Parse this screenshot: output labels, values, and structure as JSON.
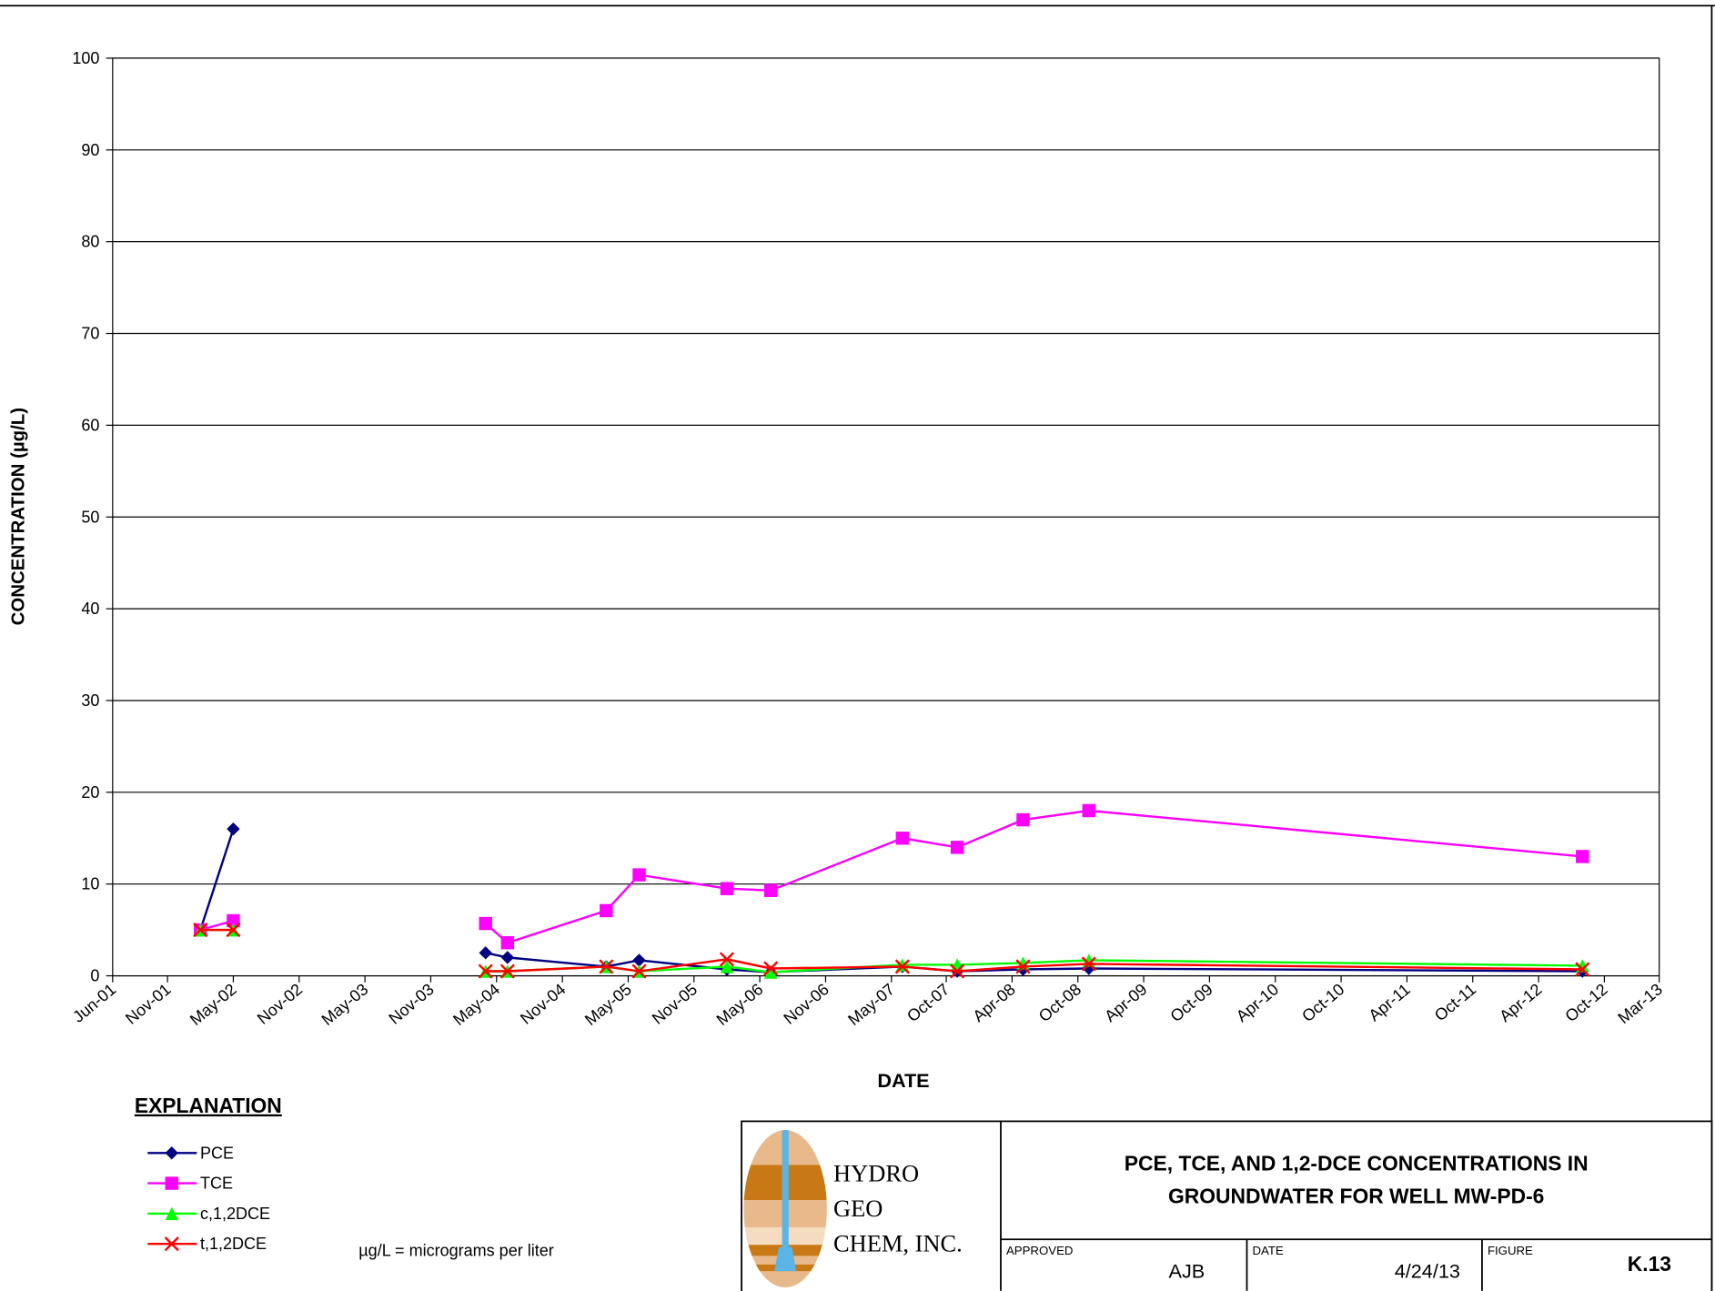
{
  "chart_data": {
    "type": "line",
    "x_label": "DATE",
    "y_label": "CONCENTRATION (µg/L)",
    "x": [
      "2002-02",
      "2002-05",
      "2003-06",
      "2004-04",
      "2004-06",
      "2005-03",
      "2005-06",
      "2006-02",
      "2006-06",
      "2007-06",
      "2007-11",
      "2008-05",
      "2008-11",
      "2012-08"
    ],
    "series": [
      {
        "name": "PCE",
        "color": "#000080",
        "marker": "diamond",
        "values": [
          5,
          16,
          null,
          2.5,
          2.0,
          1.0,
          1.7,
          0.7,
          0.4,
          1.0,
          0.5,
          0.7,
          0.8,
          0.5
        ]
      },
      {
        "name": "TCE",
        "color": "#ff00ff",
        "marker": "square",
        "values": [
          5,
          6,
          null,
          5.7,
          3.6,
          7.1,
          11,
          9.5,
          9.3,
          15,
          14,
          17,
          18,
          13
        ]
      },
      {
        "name": "c,1,2DCE",
        "color": "#00ff00",
        "marker": "triangle",
        "values": [
          5,
          5,
          null,
          0.5,
          0.5,
          1.0,
          0.5,
          1.0,
          0.4,
          1.2,
          1.2,
          1.4,
          1.7,
          1.1
        ]
      },
      {
        "name": "t,1,2DCE",
        "color": "#ff0000",
        "marker": "x",
        "values": [
          5,
          5,
          null,
          0.5,
          0.5,
          1.0,
          0.5,
          1.8,
          0.8,
          1.0,
          0.5,
          1.0,
          1.3,
          0.7
        ]
      }
    ],
    "xlim": [
      "2001-06",
      "2013-03"
    ],
    "xticks": [
      {
        "value": "2001-06",
        "label": "Jun-01"
      },
      {
        "value": "2001-11",
        "label": "Nov-01"
      },
      {
        "value": "2002-05",
        "label": "May-02"
      },
      {
        "value": "2002-11",
        "label": "Nov-02"
      },
      {
        "value": "2003-05",
        "label": "May-03"
      },
      {
        "value": "2003-11",
        "label": "Nov-03"
      },
      {
        "value": "2004-05",
        "label": "May-04"
      },
      {
        "value": "2004-11",
        "label": "Nov-04"
      },
      {
        "value": "2005-05",
        "label": "May-05"
      },
      {
        "value": "2005-11",
        "label": "Nov-05"
      },
      {
        "value": "2006-05",
        "label": "May-06"
      },
      {
        "value": "2006-11",
        "label": "Nov-06"
      },
      {
        "value": "2007-05",
        "label": "May-07"
      },
      {
        "value": "2007-10",
        "label": "Oct-07"
      },
      {
        "value": "2008-04",
        "label": "Apr-08"
      },
      {
        "value": "2008-10",
        "label": "Oct-08"
      },
      {
        "value": "2009-04",
        "label": "Apr-09"
      },
      {
        "value": "2009-10",
        "label": "Oct-09"
      },
      {
        "value": "2010-04",
        "label": "Apr-10"
      },
      {
        "value": "2010-10",
        "label": "Oct-10"
      },
      {
        "value": "2011-04",
        "label": "Apr-11"
      },
      {
        "value": "2011-10",
        "label": "Oct-11"
      },
      {
        "value": "2012-04",
        "label": "Apr-12"
      },
      {
        "value": "2012-10",
        "label": "Oct-12"
      },
      {
        "value": "2013-03",
        "label": "Mar-13"
      }
    ],
    "ylim": [
      0,
      100
    ],
    "yticks": [
      0,
      10,
      20,
      30,
      40,
      50,
      60,
      70,
      80,
      90,
      100
    ],
    "grid": true,
    "legend_title": "EXPLANATION",
    "note": "µg/L = micrograms per liter"
  },
  "title_block": {
    "company": [
      "HYDRO",
      "GEO",
      "CHEM, INC."
    ],
    "title": [
      "PCE, TCE, AND 1,2-DCE CONCENTRATIONS IN",
      "GROUNDWATER FOR WELL MW-PD-6"
    ],
    "approved_label": "APPROVED",
    "approved": "AJB",
    "date_label": "DATE",
    "date": "4/24/13",
    "figure_label": "FIGURE",
    "figure": "K.13"
  }
}
